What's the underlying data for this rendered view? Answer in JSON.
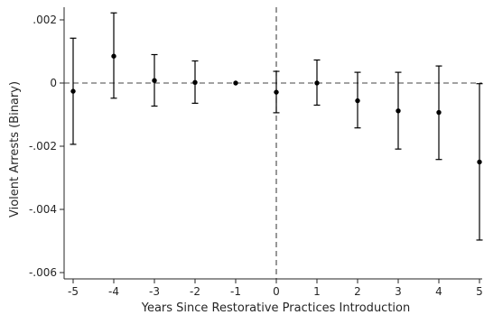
{
  "chart_data": {
    "type": "scatter",
    "subtype": "coefficient-plot-with-error-bars",
    "title": "",
    "xlabel": "Years Since Restorative Practices Introduction",
    "ylabel": "Violent Arrests (Binary)",
    "xlim": [
      -5,
      5
    ],
    "ylim": [
      -0.0062,
      0.0024
    ],
    "x_ticks": [
      -5,
      -4,
      -3,
      -2,
      -1,
      0,
      1,
      2,
      3,
      4,
      5
    ],
    "x_tick_labels": [
      "-5",
      "-4",
      "-3",
      "-2",
      "-1",
      "0",
      "1",
      "2",
      "3",
      "4",
      "5"
    ],
    "y_ticks": [
      0.002,
      0,
      -0.002,
      -0.004,
      -0.006
    ],
    "y_tick_labels": [
      ".002",
      "0",
      "-.002",
      "-.004",
      "-.006"
    ],
    "reference_lines": {
      "horizontal_y": 0,
      "vertical_x": 0,
      "style": "dashed"
    },
    "grid": false,
    "legend": "none",
    "color": "#000000",
    "series": [
      {
        "points": [
          {
            "x": -5,
            "y": -0.00026,
            "ci_low": -0.00194,
            "ci_high": 0.00142
          },
          {
            "x": -4,
            "y": 0.00085,
            "ci_low": -0.00048,
            "ci_high": 0.00222
          },
          {
            "x": -3,
            "y": 8e-05,
            "ci_low": -0.00073,
            "ci_high": 0.0009
          },
          {
            "x": -2,
            "y": 2e-05,
            "ci_low": -0.00064,
            "ci_high": 0.0007
          },
          {
            "x": -1,
            "y": 0.0,
            "ci_low": null,
            "ci_high": null
          },
          {
            "x": 0,
            "y": -0.00029,
            "ci_low": -0.00094,
            "ci_high": 0.00037
          },
          {
            "x": 1,
            "y": 0.0,
            "ci_low": -0.0007,
            "ci_high": 0.00073
          },
          {
            "x": 2,
            "y": -0.00056,
            "ci_low": -0.00142,
            "ci_high": 0.00034
          },
          {
            "x": 3,
            "y": -0.00088,
            "ci_low": -0.00209,
            "ci_high": 0.00034
          },
          {
            "x": 4,
            "y": -0.00093,
            "ci_low": -0.00242,
            "ci_high": 0.00054
          },
          {
            "x": 5,
            "y": -0.0025,
            "ci_low": -0.00497,
            "ci_high": -2e-05
          }
        ]
      }
    ]
  }
}
